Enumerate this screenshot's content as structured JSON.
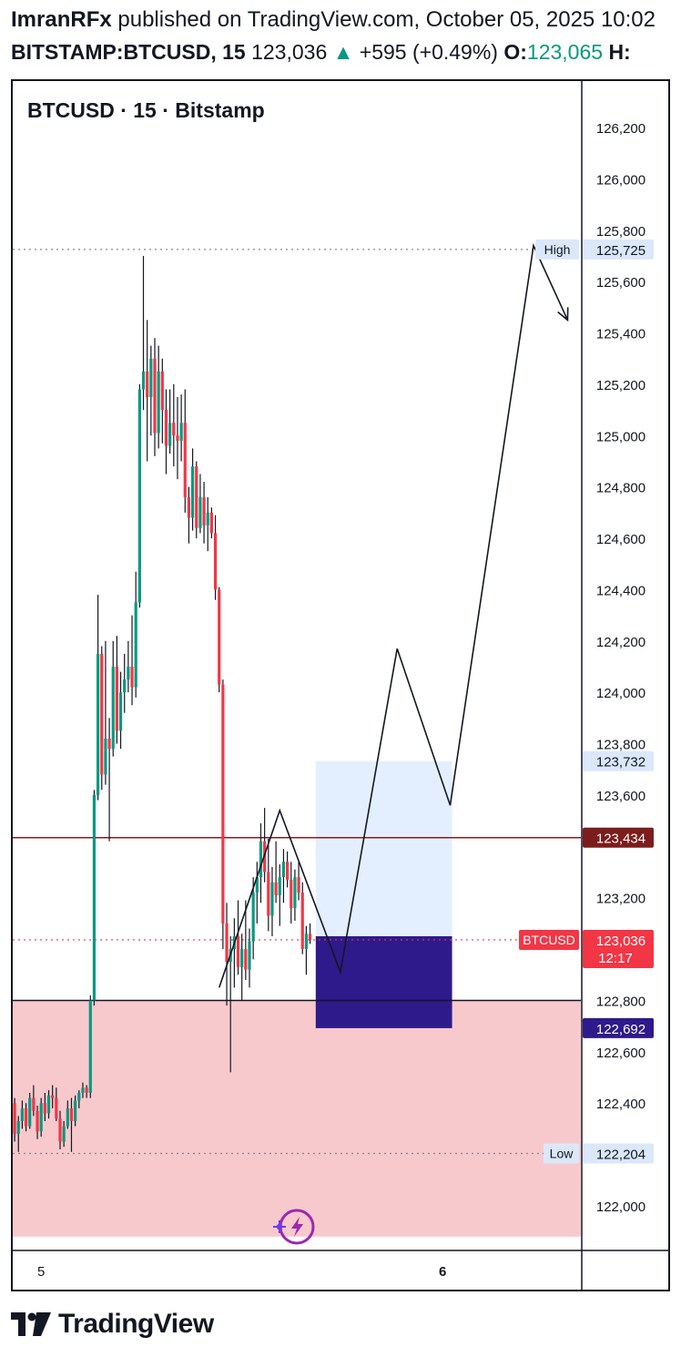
{
  "header": {
    "author": "ImranRFx",
    "published_text": " published on TradingView.com, October 05, 2025 10:02",
    "symbol": "BITSTAMP:BTCUSD, 15",
    "price": "123,036",
    "up_arrow": "▲",
    "change": "+595 (+0.49%)",
    "open_label": "O:",
    "open_value": "123,065",
    "high_label": "H:"
  },
  "chart_data": {
    "type": "candlestick",
    "title": "BTCUSD · 15 · Bitstamp",
    "ylim": [
      121850,
      126400
    ],
    "y_ticks": [
      126200,
      126000,
      125800,
      125600,
      125400,
      125200,
      125000,
      124800,
      124600,
      124400,
      124200,
      124000,
      123800,
      123600,
      123200,
      122800,
      122600,
      122400,
      122000
    ],
    "y_tick_labels": [
      "126,200",
      "126,000",
      "125,800",
      "125,600",
      "125,400",
      "125,200",
      "125,000",
      "124,800",
      "124,600",
      "124,400",
      "124,200",
      "124,000",
      "123,800",
      "123,600",
      "123,200",
      "122,800",
      "122,600",
      "122,400",
      "122,000"
    ],
    "x_tick_labels": [
      {
        "label": "5",
        "bar": 7
      },
      {
        "label": "6",
        "bar": 113
      }
    ],
    "bar_count": 150,
    "up_color": "#089981",
    "down_color": "#f23645",
    "candles": [
      [
        122400,
        122420,
        122250,
        122280
      ],
      [
        122280,
        122350,
        122210,
        122330
      ],
      [
        122330,
        122410,
        122300,
        122380
      ],
      [
        122380,
        122400,
        122290,
        122310
      ],
      [
        122310,
        122440,
        122300,
        122420
      ],
      [
        122420,
        122470,
        122350,
        122370
      ],
      [
        122370,
        122390,
        122260,
        122290
      ],
      [
        122290,
        122420,
        122270,
        122400
      ],
      [
        122400,
        122440,
        122330,
        122360
      ],
      [
        122360,
        122450,
        122340,
        122430
      ],
      [
        122430,
        122470,
        122380,
        122420
      ],
      [
        122420,
        122460,
        122330,
        122340
      ],
      [
        122340,
        122370,
        122220,
        122250
      ],
      [
        122250,
        122330,
        122230,
        122310
      ],
      [
        122310,
        122410,
        122300,
        122380
      ],
      [
        122380,
        122420,
        122210,
        122330
      ],
      [
        122330,
        122430,
        122310,
        122410
      ],
      [
        122410,
        122450,
        122380,
        122440
      ],
      [
        122440,
        122480,
        122420,
        122460
      ],
      [
        122460,
        122470,
        122420,
        122440
      ],
      [
        122440,
        122820,
        122420,
        122800
      ],
      [
        122800,
        123620,
        122780,
        123600
      ],
      [
        123600,
        124380,
        123580,
        124150
      ],
      [
        124150,
        124180,
        123620,
        123680
      ],
      [
        123680,
        124200,
        123640,
        123820
      ],
      [
        123820,
        123900,
        123420,
        123780
      ],
      [
        123780,
        124200,
        123750,
        124100
      ],
      [
        124100,
        124220,
        123800,
        123850
      ],
      [
        123850,
        124080,
        123780,
        124000
      ],
      [
        124000,
        124150,
        123920,
        124050
      ],
      [
        124050,
        124200,
        124000,
        124100
      ],
      [
        124100,
        124300,
        123950,
        124020
      ],
      [
        124020,
        124470,
        123980,
        124350
      ],
      [
        124350,
        125200,
        124330,
        125180
      ],
      [
        125180,
        125700,
        125100,
        125250
      ],
      [
        125250,
        125450,
        124900,
        125150
      ],
      [
        125150,
        125350,
        125000,
        125300
      ],
      [
        125300,
        125380,
        124920,
        125010
      ],
      [
        125010,
        125350,
        124950,
        125250
      ],
      [
        125250,
        125300,
        124970,
        125100
      ],
      [
        125100,
        125180,
        124850,
        124960
      ],
      [
        124960,
        125180,
        124930,
        125050
      ],
      [
        125050,
        125200,
        124880,
        125000
      ],
      [
        125000,
        125150,
        124830,
        124980
      ],
      [
        124980,
        125160,
        124900,
        125050
      ],
      [
        125050,
        125180,
        124700,
        124760
      ],
      [
        124760,
        124800,
        124580,
        124680
      ],
      [
        124680,
        124950,
        124630,
        124880
      ],
      [
        124880,
        124900,
        124600,
        124640
      ],
      [
        124640,
        124850,
        124620,
        124760
      ],
      [
        124760,
        124820,
        124580,
        124650
      ],
      [
        124650,
        124760,
        124550,
        124700
      ],
      [
        124700,
        124720,
        124600,
        124620
      ],
      [
        124620,
        124690,
        124360,
        124400
      ],
      [
        124400,
        124410,
        124000,
        124030
      ],
      [
        124030,
        124050,
        123000,
        123100
      ],
      [
        123100,
        123180,
        122780,
        122950
      ],
      [
        122950,
        123050,
        122520,
        123000
      ],
      [
        123000,
        123120,
        122850,
        123050
      ],
      [
        123050,
        123190,
        122900,
        122930
      ],
      [
        122930,
        123060,
        122800,
        123000
      ],
      [
        123000,
        123190,
        122880,
        122920
      ],
      [
        122920,
        123080,
        122850,
        123030
      ],
      [
        123030,
        123280,
        122960,
        123220
      ],
      [
        123220,
        123340,
        123100,
        123280
      ],
      [
        123280,
        123490,
        123180,
        123420
      ],
      [
        123420,
        123550,
        123260,
        123300
      ],
      [
        123300,
        123430,
        123070,
        123130
      ],
      [
        123130,
        123320,
        123050,
        123260
      ],
      [
        123260,
        123420,
        123180,
        123210
      ],
      [
        123210,
        123330,
        123090,
        123280
      ],
      [
        123280,
        123390,
        123180,
        123340
      ],
      [
        123340,
        123380,
        123240,
        123270
      ],
      [
        123270,
        123340,
        123100,
        123160
      ],
      [
        123160,
        123310,
        123110,
        123280
      ],
      [
        123280,
        123340,
        123190,
        123220
      ],
      [
        123220,
        123260,
        122980,
        123000
      ],
      [
        123000,
        123090,
        122900,
        123060
      ],
      [
        123060,
        123100,
        123020,
        123036
      ]
    ],
    "zones": [
      {
        "name": "demand-zone",
        "y_top": 122800,
        "y_bottom": 121880,
        "color": "#f7c9cd",
        "bar_start": 0,
        "bar_end": 150
      },
      {
        "name": "target-box",
        "y_top": 123732,
        "y_bottom": 123050,
        "color": "#e3efff",
        "bar_start": 80,
        "bar_end": 116
      },
      {
        "name": "entry-box",
        "y_top": 123050,
        "y_bottom": 122692,
        "color": "#2e1a8a",
        "bar_start": 80,
        "bar_end": 116
      }
    ],
    "lines": [
      {
        "name": "high-line",
        "y": 125725,
        "style": "dotted",
        "color": "#888888"
      },
      {
        "name": "low-line",
        "y": 122204,
        "style": "dotted",
        "color": "#888888"
      },
      {
        "name": "resistance-line",
        "y": 123434,
        "style": "solid",
        "color": "#8a1c1c"
      },
      {
        "name": "last-price-line",
        "y": 123036,
        "style": "dotted",
        "color": "#f23645"
      },
      {
        "name": "zone-top-line",
        "y": 122800,
        "style": "solid",
        "color": "#131722"
      }
    ],
    "drawn_path": [
      [
        54,
        122850
      ],
      [
        70,
        123540
      ],
      [
        86,
        122910
      ],
      [
        101,
        124170
      ],
      [
        115,
        123560
      ],
      [
        137,
        125740
      ],
      [
        146,
        125450
      ]
    ],
    "price_tags": [
      {
        "name": "high-tag",
        "prefix": "High",
        "value": "125,725",
        "y": 125725,
        "bg": "#dbe8fa",
        "fg": "#131722",
        "prefix_bg": "#dbe8fa"
      },
      {
        "name": "tp-tag",
        "prefix": "",
        "value": "123,732",
        "y": 123732,
        "bg": "#dbe8fa",
        "fg": "#131722"
      },
      {
        "name": "resistance-tag",
        "prefix": "",
        "value": "123,434",
        "y": 123434,
        "bg": "#7d1c1c",
        "fg": "#ffffff"
      },
      {
        "name": "last-price-tag",
        "prefix": "BTCUSD",
        "value": "123,036",
        "sub": "12:17",
        "y": 123036,
        "bg": "#f23645",
        "fg": "#ffffff",
        "prefix_bg": "#f23645"
      },
      {
        "name": "stop-tag",
        "prefix": "",
        "value": "122,692",
        "y": 122692,
        "bg": "#2e1a8a",
        "fg": "#ffffff"
      },
      {
        "name": "low-tag",
        "prefix": "Low",
        "value": "122,204",
        "y": 122204,
        "bg": "#dbe8fa",
        "fg": "#131722",
        "prefix_bg": "#dbe8fa"
      }
    ]
  },
  "footer": {
    "brand": "TradingView",
    "logo_icon": "tradingview-logo-icon"
  },
  "icons": {
    "floating": "lightning-sparkle-icon"
  }
}
